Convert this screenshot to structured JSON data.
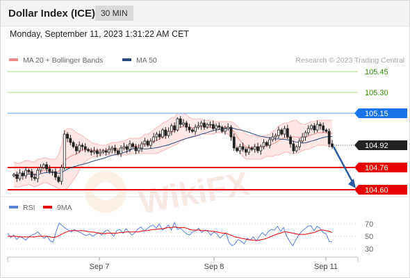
{
  "header": {
    "title": "Dollar Index (ICE)",
    "timeframe": "30 MIN"
  },
  "timestamp": "Monday, September 11, 2023 1:31:22 AM CET",
  "chart_data": {
    "type": "candlestick",
    "main_legend": [
      {
        "label": "MA 20 + Bollinger Bands",
        "color": "#f08a8a"
      },
      {
        "label": "MA 50",
        "color": "#2b4a7e"
      }
    ],
    "credit": "Research © 2023 Trading Central",
    "x_ticks": [
      "Sep 7",
      "Sep 8",
      "Sep 11"
    ],
    "levels": [
      {
        "label": "105.45",
        "value": 105.45,
        "color": "#2e8b00",
        "line": "#a8d98a",
        "style": "text"
      },
      {
        "label": "105.30",
        "value": 105.3,
        "color": "#2e8b00",
        "line": "#a8d98a",
        "style": "text"
      },
      {
        "label": "105.15",
        "value": 105.15,
        "color": "#1a73e8",
        "line": "#5a9bf0",
        "style": "badge"
      },
      {
        "label": "104.92",
        "value": 104.92,
        "color": "#222222",
        "line": "#777777",
        "style": "badge-current"
      },
      {
        "label": "104.76",
        "value": 104.76,
        "color": "#e60000",
        "line": "#e60000",
        "style": "badge"
      },
      {
        "label": "104.60",
        "value": 104.6,
        "color": "#e60000",
        "line": "#e60000",
        "style": "badge"
      }
    ],
    "forecast_arrow": {
      "from": 104.91,
      "to": 104.61,
      "color": "#2b5c9e"
    },
    "price_path": [
      104.71,
      104.68,
      104.72,
      104.7,
      104.74,
      104.73,
      104.69,
      104.68,
      104.74,
      104.76,
      104.78,
      104.75,
      104.73,
      104.73,
      104.69,
      104.66,
      104.76,
      105.0,
      104.97,
      104.94,
      104.91,
      104.88,
      104.92,
      104.91,
      104.89,
      104.88,
      104.87,
      104.88,
      104.86,
      104.87,
      104.88,
      104.87,
      104.89,
      104.9,
      104.88,
      104.86,
      104.9,
      104.91,
      104.89,
      104.93,
      104.91,
      104.88,
      104.9,
      104.93,
      104.95,
      104.92,
      104.95,
      104.98,
      105.0,
      104.98,
      105.03,
      104.99,
      105.02,
      105.06,
      105.03,
      105.11,
      105.07,
      105.08,
      105.05,
      105.03,
      105.02,
      105.05,
      105.06,
      105.08,
      105.05,
      105.07,
      105.07,
      105.04,
      105.06,
      105.05,
      105.02,
      105.04,
      105.05,
      104.98,
      104.9,
      104.88,
      104.91,
      104.89,
      104.87,
      104.9,
      104.89,
      104.91,
      104.88,
      104.91,
      104.94,
      104.92,
      104.96,
      104.98,
      104.99,
      105.03,
      105.0,
      105.04,
      104.98,
      104.93,
      104.88,
      104.91,
      104.95,
      104.98,
      105.01,
      105.04,
      105.06,
      105.03,
      105.07,
      105.06,
      105.03,
      105.02,
      104.93,
      104.91
    ],
    "bands": {
      "upper": [
        104.8,
        104.79,
        104.79,
        104.8,
        104.81,
        104.81,
        104.8,
        104.8,
        104.82,
        104.82,
        104.83,
        104.83,
        104.82,
        104.82,
        104.82,
        104.85,
        104.92,
        105.02,
        105.04,
        105.04,
        105.03,
        105.01,
        105.0,
        104.99,
        104.97,
        104.96,
        104.94,
        104.93,
        104.93,
        104.92,
        104.92,
        104.92,
        104.93,
        104.94,
        104.94,
        104.94,
        104.95,
        104.95,
        104.96,
        104.97,
        104.97,
        104.97,
        104.97,
        104.98,
        105.0,
        105.0,
        105.01,
        105.03,
        105.05,
        105.06,
        105.08,
        105.09,
        105.1,
        105.12,
        105.12,
        105.15,
        105.15,
        105.15,
        105.14,
        105.12,
        105.11,
        105.11,
        105.11,
        105.11,
        105.1,
        105.1,
        105.1,
        105.09,
        105.09,
        105.09,
        105.09,
        105.09,
        105.09,
        105.09,
        105.08,
        105.06,
        105.04,
        105.02,
        105.0,
        104.99,
        104.99,
        104.99,
        104.98,
        104.98,
        104.99,
        104.99,
        105.0,
        105.02,
        105.03,
        105.06,
        105.07,
        105.08,
        105.08,
        105.09,
        105.1,
        105.1,
        105.08,
        105.07,
        105.07,
        105.08,
        105.09,
        105.09,
        105.1,
        105.1,
        105.1,
        105.1,
        105.1,
        105.1
      ],
      "lower": [
        104.62,
        104.62,
        104.62,
        104.63,
        104.63,
        104.64,
        104.63,
        104.62,
        104.63,
        104.64,
        104.65,
        104.65,
        104.64,
        104.63,
        104.62,
        104.61,
        104.6,
        104.6,
        104.61,
        104.64,
        104.67,
        104.7,
        104.74,
        104.78,
        104.8,
        104.82,
        104.83,
        104.84,
        104.84,
        104.85,
        104.85,
        104.85,
        104.85,
        104.85,
        104.85,
        104.85,
        104.85,
        104.85,
        104.85,
        104.86,
        104.86,
        104.86,
        104.86,
        104.86,
        104.86,
        104.86,
        104.86,
        104.86,
        104.86,
        104.87,
        104.88,
        104.89,
        104.9,
        104.91,
        104.92,
        104.93,
        104.95,
        104.96,
        104.97,
        104.98,
        104.98,
        104.98,
        104.99,
        105.0,
        105.0,
        105.0,
        105.0,
        105.0,
        105.01,
        105.01,
        105.01,
        105.01,
        105.0,
        104.98,
        104.95,
        104.91,
        104.87,
        104.84,
        104.82,
        104.82,
        104.82,
        104.82,
        104.82,
        104.82,
        104.83,
        104.84,
        104.84,
        104.84,
        104.85,
        104.85,
        104.86,
        104.87,
        104.87,
        104.86,
        104.86,
        104.86,
        104.87,
        104.88,
        104.89,
        104.89,
        104.9,
        104.91,
        104.92,
        104.92,
        104.92,
        104.92,
        104.91,
        104.91
      ]
    },
    "rsi": {
      "legend": [
        {
          "label": "RSI",
          "color": "#5b7fd6"
        },
        {
          "label": "9MA",
          "color": "#e60000"
        }
      ],
      "ticks": [
        "70",
        "50",
        "30"
      ],
      "rsi_values": [
        55,
        48,
        52,
        45,
        50,
        47,
        44,
        49,
        52,
        54,
        57,
        51,
        47,
        50,
        43,
        41,
        58,
        71,
        67,
        63,
        60,
        57,
        61,
        58,
        56,
        53,
        51,
        54,
        50,
        53,
        56,
        52,
        58,
        60,
        55,
        50,
        59,
        61,
        55,
        62,
        57,
        52,
        56,
        62,
        65,
        58,
        62,
        66,
        68,
        63,
        70,
        60,
        63,
        68,
        60,
        72,
        61,
        63,
        58,
        54,
        52,
        57,
        59,
        63,
        56,
        60,
        58,
        52,
        57,
        54,
        47,
        52,
        55,
        40,
        35,
        38,
        45,
        42,
        38,
        47,
        44,
        49,
        43,
        50,
        56,
        51,
        58,
        61,
        60,
        66,
        58,
        64,
        50,
        42,
        35,
        44,
        52,
        58,
        62,
        66,
        67,
        59,
        66,
        63,
        56,
        54,
        42,
        41
      ],
      "ma_values": [
        50,
        50,
        50,
        50,
        49,
        49,
        49,
        49,
        49,
        49,
        50,
        50,
        50,
        50,
        49,
        48,
        49,
        51,
        54,
        56,
        58,
        59,
        59,
        59,
        59,
        59,
        58,
        57,
        57,
        56,
        55,
        55,
        54,
        55,
        55,
        55,
        55,
        56,
        56,
        57,
        57,
        57,
        57,
        57,
        58,
        59,
        59,
        60,
        61,
        61,
        62,
        62,
        63,
        64,
        64,
        65,
        64,
        64,
        64,
        63,
        61,
        60,
        60,
        60,
        59,
        59,
        59,
        58,
        58,
        57,
        56,
        55,
        55,
        53,
        51,
        49,
        48,
        47,
        46,
        45,
        44,
        44,
        43,
        44,
        45,
        46,
        48,
        50,
        52,
        54,
        55,
        57,
        57,
        56,
        55,
        54,
        53,
        53,
        53,
        54,
        55,
        56,
        58,
        60,
        60,
        59,
        58,
        56
      ]
    }
  }
}
